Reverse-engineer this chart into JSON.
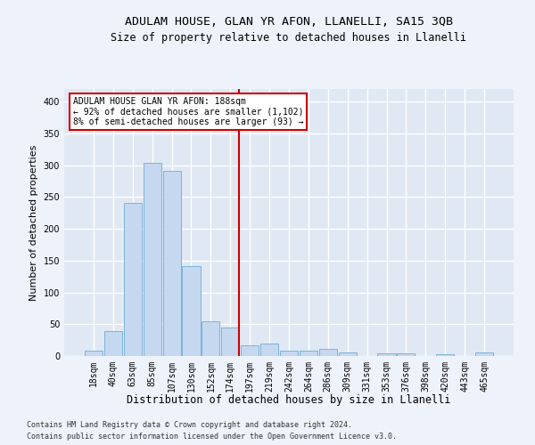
{
  "title1": "ADULAM HOUSE, GLAN YR AFON, LLANELLI, SA15 3QB",
  "title2": "Size of property relative to detached houses in Llanelli",
  "xlabel": "Distribution of detached houses by size in Llanelli",
  "ylabel": "Number of detached properties",
  "footnote1": "Contains HM Land Registry data © Crown copyright and database right 2024.",
  "footnote2": "Contains public sector information licensed under the Open Government Licence v3.0.",
  "bar_labels": [
    "18sqm",
    "40sqm",
    "63sqm",
    "85sqm",
    "107sqm",
    "130sqm",
    "152sqm",
    "174sqm",
    "197sqm",
    "219sqm",
    "242sqm",
    "264sqm",
    "286sqm",
    "309sqm",
    "331sqm",
    "353sqm",
    "376sqm",
    "398sqm",
    "420sqm",
    "443sqm",
    "465sqm"
  ],
  "bar_values": [
    8,
    39,
    241,
    304,
    291,
    142,
    55,
    45,
    17,
    19,
    8,
    8,
    11,
    5,
    0,
    4,
    4,
    0,
    3,
    0,
    5
  ],
  "bar_color": "#c5d8f0",
  "bar_edge_color": "#7ab4d8",
  "vline_color": "#cc0000",
  "annotation_title": "ADULAM HOUSE GLAN YR AFON: 188sqm",
  "annotation_line1": "← 92% of detached houses are smaller (1,102)",
  "annotation_line2": "8% of semi-detached houses are larger (93) →",
  "annotation_box_color": "#ffffff",
  "annotation_box_edge": "#cc0000",
  "ylim": [
    0,
    420
  ],
  "yticks": [
    0,
    50,
    100,
    150,
    200,
    250,
    300,
    350,
    400
  ],
  "fig_background": "#eef2fa",
  "ax_background": "#e0e8f4",
  "grid_color": "#ffffff",
  "title_fontsize": 9.5,
  "subtitle_fontsize": 8.5,
  "tick_fontsize": 7,
  "ylabel_fontsize": 8,
  "xlabel_fontsize": 8.5,
  "footnote_fontsize": 6
}
